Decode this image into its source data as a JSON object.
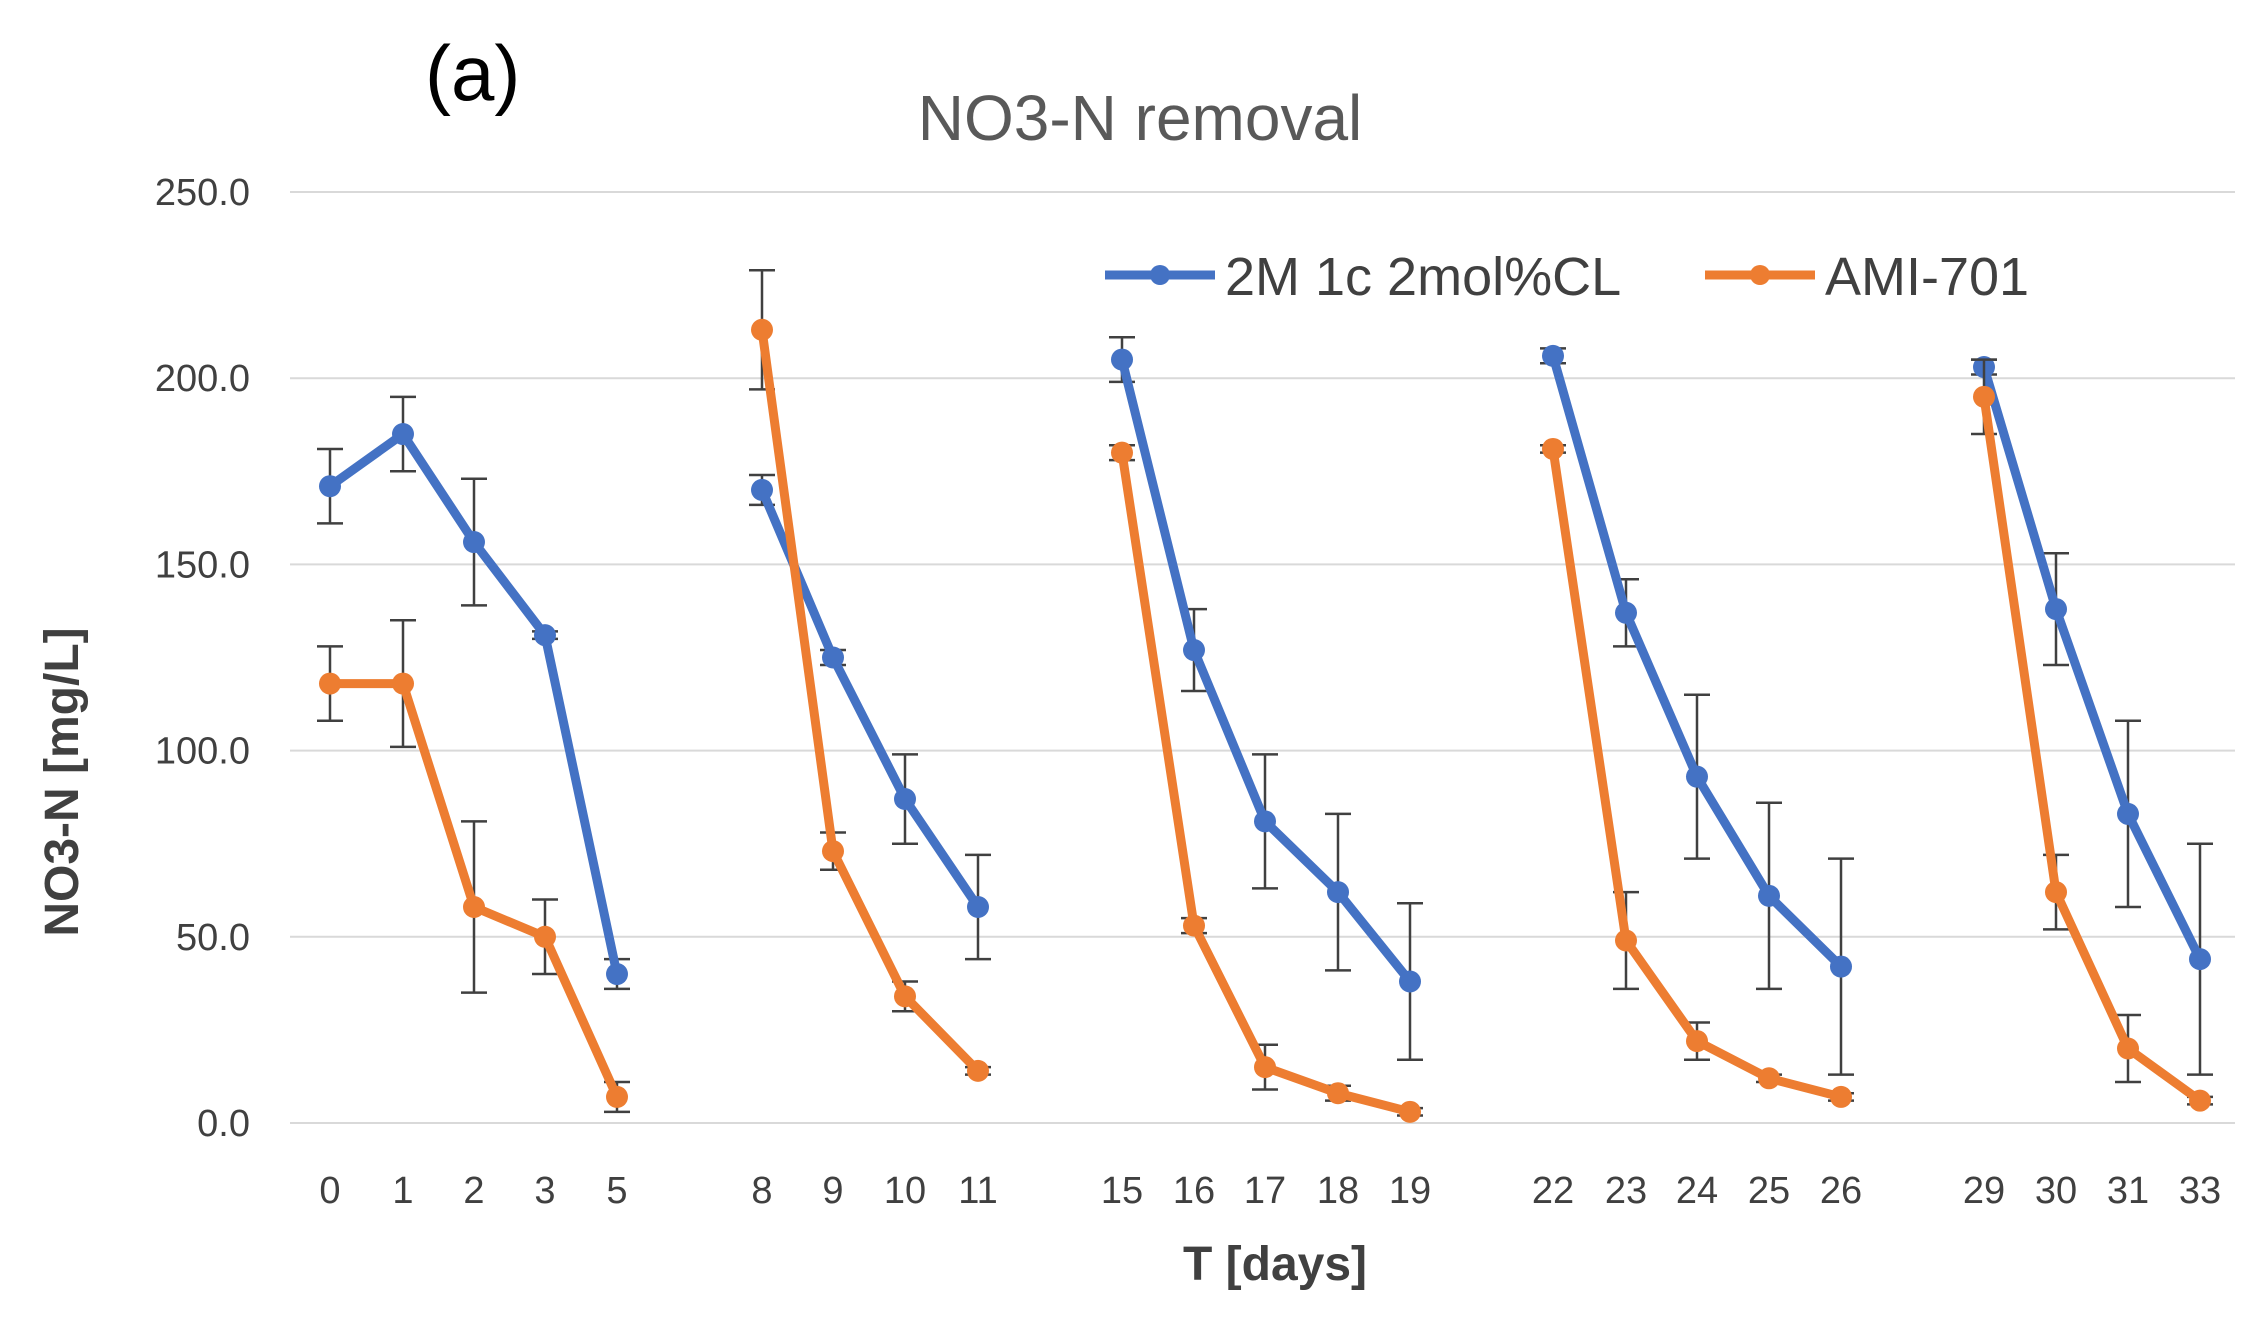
{
  "panel_label": "(a)",
  "colors": {
    "series_1": "#4472C4",
    "series_2": "#ED7D31",
    "grid": "#D9D9D9",
    "text": "#404040"
  },
  "chart_data": {
    "type": "line",
    "title": "NO3-N removal",
    "xlabel": "T [days]",
    "ylabel": "NO3-N [mg/L]",
    "ylim": [
      0,
      250
    ],
    "yticks": [
      "0.0",
      "50.0",
      "100.0",
      "150.0",
      "200.0",
      "250.0"
    ],
    "grid": true,
    "legend_position": "top-right",
    "categories": [
      "0",
      "1",
      "2",
      "3",
      "5",
      "8",
      "9",
      "10",
      "11",
      "15",
      "16",
      "17",
      "18",
      "19",
      "22",
      "23",
      "24",
      "25",
      "26",
      "29",
      "30",
      "31",
      "33"
    ],
    "segments": [
      [
        0,
        4
      ],
      [
        5,
        8
      ],
      [
        9,
        13
      ],
      [
        14,
        18
      ],
      [
        19,
        22
      ]
    ],
    "series": [
      {
        "name": "2M 1c 2mol%CL",
        "color": "#4472C4",
        "values": [
          171,
          185,
          156,
          131,
          40,
          170,
          125,
          87,
          58,
          205,
          127,
          81,
          62,
          38,
          206,
          137,
          93,
          61,
          42,
          203,
          138,
          83,
          44
        ],
        "errors": [
          10,
          10,
          17,
          1,
          4,
          4,
          2,
          12,
          14,
          6,
          11,
          18,
          21,
          21,
          2,
          9,
          22,
          25,
          29,
          2,
          15,
          25,
          31
        ]
      },
      {
        "name": "AMI-701",
        "color": "#ED7D31",
        "values": [
          118,
          118,
          58,
          50,
          7,
          213,
          73,
          34,
          14,
          180,
          53,
          15,
          8,
          3,
          181,
          49,
          22,
          12,
          7,
          195,
          62,
          20,
          6
        ],
        "errors": [
          10,
          17,
          23,
          10,
          4,
          16,
          5,
          4,
          1,
          2,
          2,
          6,
          2,
          1,
          1,
          13,
          5,
          1,
          1,
          10,
          10,
          9,
          1
        ]
      }
    ]
  }
}
